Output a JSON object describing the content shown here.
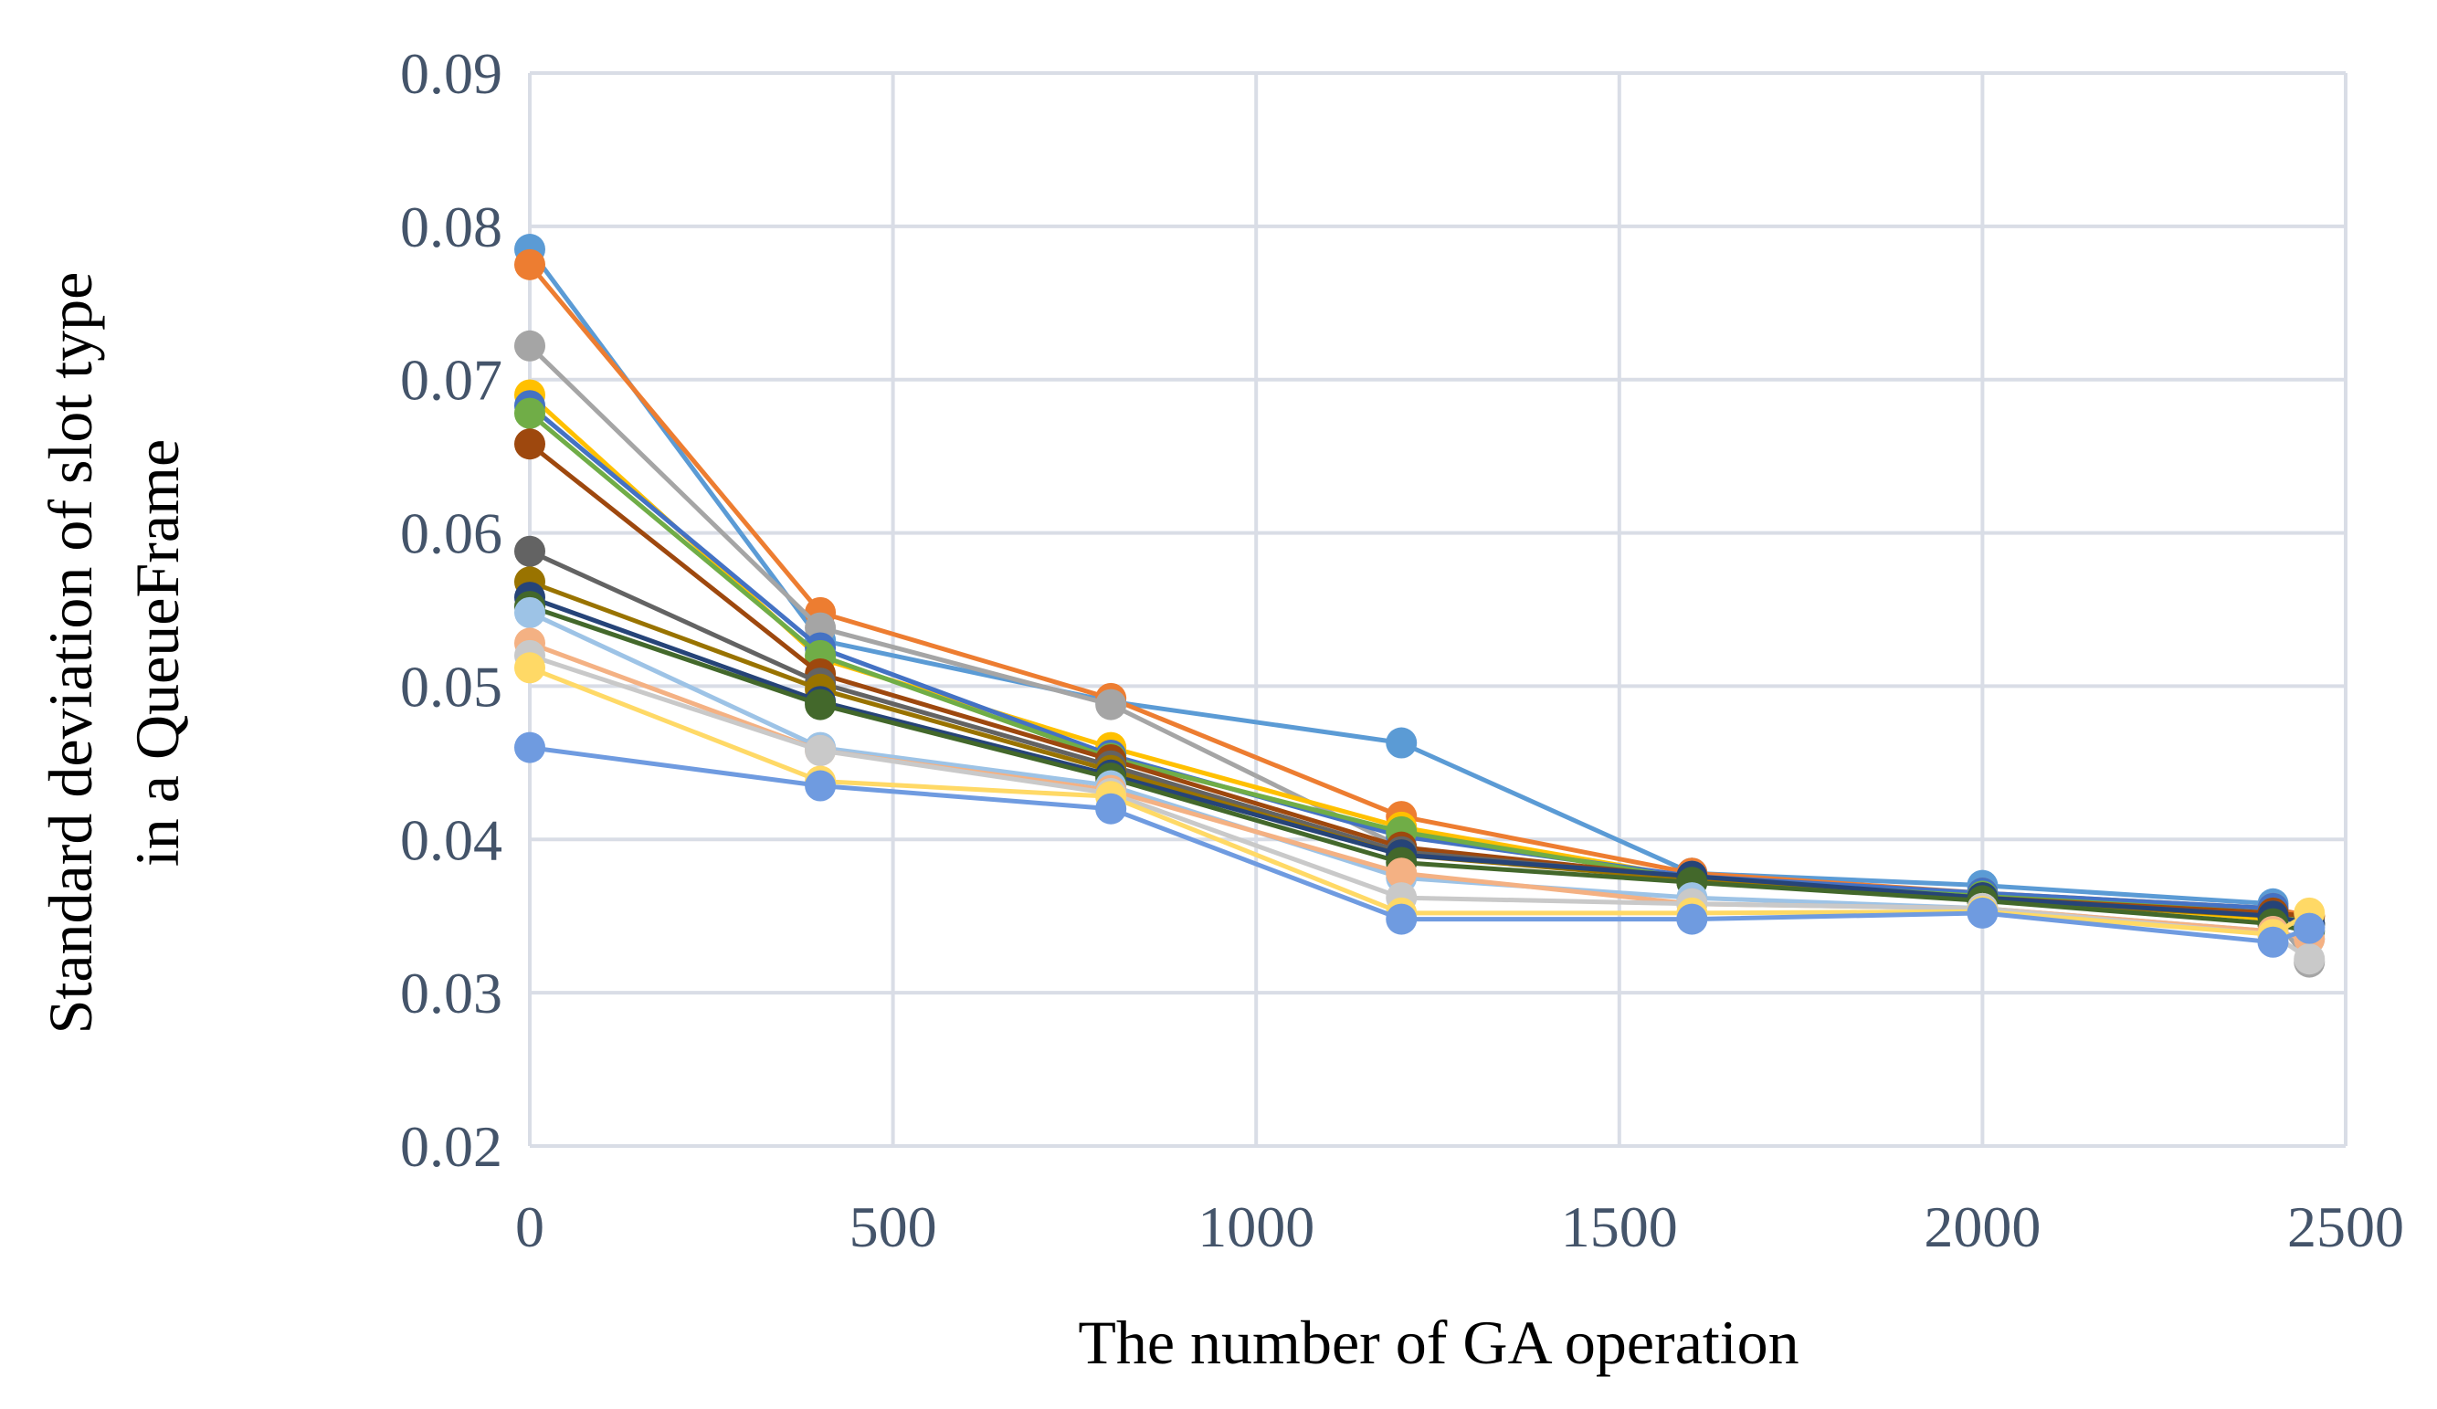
{
  "chart_data": {
    "type": "line",
    "title": "",
    "xlabel": "The number of GA operation",
    "ylabel_lines": [
      "Standard deviation of slot type",
      "in a QueueFrame"
    ],
    "xlim": [
      0,
      2500
    ],
    "ylim": [
      0.02,
      0.09
    ],
    "x_ticks": [
      0,
      500,
      1000,
      1500,
      2000,
      2500
    ],
    "y_ticks": [
      0.02,
      0.03,
      0.04,
      0.05,
      0.06,
      0.07,
      0.08,
      0.09
    ],
    "x_tick_labels": [
      "0",
      "500",
      "1000",
      "1500",
      "2000",
      "2500"
    ],
    "y_tick_labels": [
      "0.02",
      "0.03",
      "0.04",
      "0.05",
      "0.06",
      "0.07",
      "0.08",
      "0.09"
    ],
    "grid": true,
    "legend": "none",
    "series": [
      {
        "name": "series-1",
        "color": "#5b9bd5",
        "x": [
          0,
          400,
          800,
          1200,
          1600,
          2000,
          2400,
          2450
        ],
        "values": [
          0.0785,
          0.053,
          0.049,
          0.0463,
          0.0378,
          0.037,
          0.0358,
          0.0345
        ]
      },
      {
        "name": "series-2",
        "color": "#ed7d31",
        "x": [
          0,
          400,
          800,
          1200,
          1600,
          2000,
          2400,
          2450
        ],
        "values": [
          0.0775,
          0.0548,
          0.0492,
          0.0415,
          0.0378,
          0.0365,
          0.0355,
          0.035
        ]
      },
      {
        "name": "series-3",
        "color": "#a5a5a5",
        "x": [
          0,
          400,
          800,
          1200,
          1600,
          2000,
          2400,
          2450
        ],
        "values": [
          0.0722,
          0.0538,
          0.0488,
          0.0395,
          0.0372,
          0.0362,
          0.035,
          0.032
        ]
      },
      {
        "name": "series-4",
        "color": "#ffc000",
        "x": [
          0,
          400,
          800,
          1200,
          1600,
          2000,
          2400,
          2450
        ],
        "values": [
          0.069,
          0.0518,
          0.046,
          0.0408,
          0.0375,
          0.0363,
          0.0348,
          0.035
        ]
      },
      {
        "name": "series-5",
        "color": "#4472c4",
        "x": [
          0,
          400,
          800,
          1200,
          1600,
          2000,
          2400,
          2450
        ],
        "values": [
          0.0683,
          0.0525,
          0.0455,
          0.0402,
          0.0376,
          0.0365,
          0.0355,
          0.0343
        ]
      },
      {
        "name": "series-6",
        "color": "#70ad47",
        "x": [
          0,
          400,
          800,
          1200,
          1600,
          2000,
          2400,
          2450
        ],
        "values": [
          0.0678,
          0.052,
          0.0453,
          0.0405,
          0.0374,
          0.0363,
          0.0352,
          0.0345
        ]
      },
      {
        "name": "series-7",
        "color": "#9e480e",
        "x": [
          0,
          400,
          800,
          1200,
          1600,
          2000,
          2400,
          2450
        ],
        "values": [
          0.0658,
          0.0508,
          0.0452,
          0.0395,
          0.0375,
          0.0362,
          0.0352,
          0.035
        ]
      },
      {
        "name": "series-8",
        "color": "#636363",
        "x": [
          0,
          400,
          800,
          1200,
          1600,
          2000,
          2400,
          2450
        ],
        "values": [
          0.0588,
          0.0502,
          0.0448,
          0.0392,
          0.0375,
          0.0362,
          0.035,
          0.0345
        ]
      },
      {
        "name": "series-9",
        "color": "#997300",
        "x": [
          0,
          400,
          800,
          1200,
          1600,
          2000,
          2400,
          2450
        ],
        "values": [
          0.0568,
          0.0498,
          0.0445,
          0.039,
          0.0374,
          0.036,
          0.035,
          0.0345
        ]
      },
      {
        "name": "series-10",
        "color": "#264478",
        "x": [
          0,
          400,
          800,
          1200,
          1600,
          2000,
          2400,
          2450
        ],
        "values": [
          0.0558,
          0.049,
          0.0442,
          0.039,
          0.0376,
          0.0362,
          0.035,
          0.0345
        ]
      },
      {
        "name": "series-11",
        "color": "#43682b",
        "x": [
          0,
          400,
          800,
          1200,
          1600,
          2000,
          2400,
          2450
        ],
        "values": [
          0.0552,
          0.0488,
          0.044,
          0.0385,
          0.0372,
          0.036,
          0.0345,
          0.034
        ]
      },
      {
        "name": "series-12",
        "color": "#9dc3e6",
        "x": [
          0,
          400,
          800,
          1200,
          1600,
          2000,
          2400,
          2450
        ],
        "values": [
          0.0548,
          0.046,
          0.0435,
          0.0375,
          0.0362,
          0.0355,
          0.034,
          0.0335
        ]
      },
      {
        "name": "series-13",
        "color": "#f4b183",
        "x": [
          0,
          400,
          800,
          1200,
          1600,
          2000,
          2400,
          2450
        ],
        "values": [
          0.0528,
          0.0458,
          0.0432,
          0.0378,
          0.0358,
          0.0355,
          0.034,
          0.0335
        ]
      },
      {
        "name": "series-14",
        "color": "#c9c9c9",
        "x": [
          0,
          400,
          800,
          1200,
          1600,
          2000,
          2400,
          2450
        ],
        "values": [
          0.052,
          0.0458,
          0.043,
          0.0362,
          0.0358,
          0.0355,
          0.0338,
          0.0322
        ]
      },
      {
        "name": "series-15",
        "color": "#ffd966",
        "x": [
          0,
          400,
          800,
          1200,
          1600,
          2000,
          2400,
          2450
        ],
        "values": [
          0.0512,
          0.0438,
          0.0428,
          0.0352,
          0.0352,
          0.0353,
          0.0338,
          0.0352
        ]
      },
      {
        "name": "series-16",
        "color": "#6f9be0",
        "x": [
          0,
          400,
          800,
          1200,
          1600,
          2000,
          2400,
          2450
        ],
        "values": [
          0.046,
          0.0435,
          0.042,
          0.0348,
          0.0348,
          0.0352,
          0.0333,
          0.0342
        ]
      }
    ]
  }
}
